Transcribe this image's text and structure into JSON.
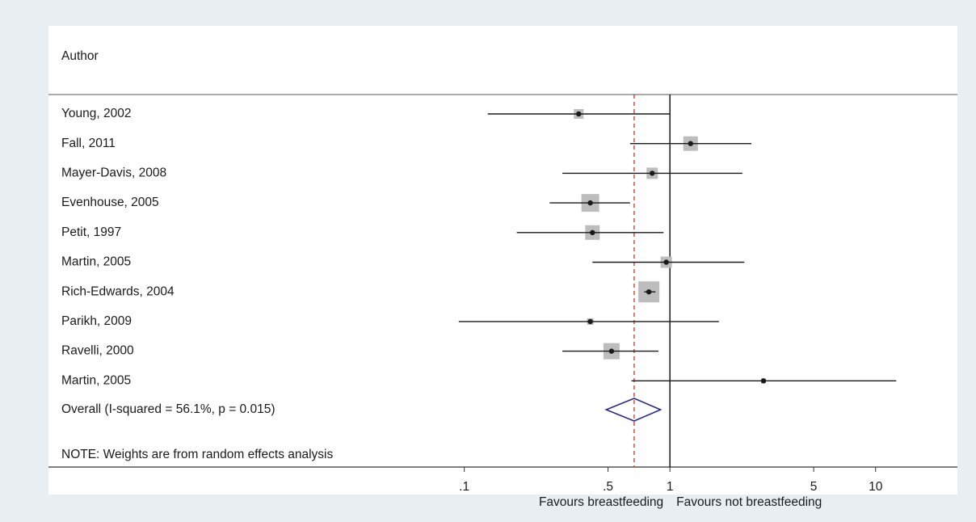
{
  "chart_data": {
    "type": "forest",
    "header": "Author",
    "log_scale": true,
    "xlim": [
      0.09,
      25
    ],
    "xticks": [
      {
        "value": 0.1,
        "label": ".1"
      },
      {
        "value": 0.5,
        "label": ".5"
      },
      1,
      5,
      10
    ],
    "null_value": 1,
    "xlabel_left": "Favours breastfeeding",
    "xlabel_right": "Favours not breastfeeding",
    "box_color": "#bdbdbd",
    "line_color": "#1a1a1a",
    "diamond_color": "#2b2b8c",
    "overall_line_color": "#c0392b",
    "studies": [
      {
        "label": "Young, 2002",
        "estimate": 0.36,
        "ci": [
          0.13,
          1.0
        ],
        "weight": 5.1
      },
      {
        "label": "Fall, 2011",
        "estimate": 1.26,
        "ci": [
          0.64,
          2.49
        ],
        "weight": 11.4
      },
      {
        "label": "Mayer-Davis, 2008",
        "estimate": 0.82,
        "ci": [
          0.3,
          2.25
        ],
        "weight": 6.9
      },
      {
        "label": "Evenhouse, 2005",
        "estimate": 0.41,
        "ci": [
          0.26,
          0.64
        ],
        "weight": 17.0
      },
      {
        "label": "Petit, 1997",
        "estimate": 0.42,
        "ci": [
          0.18,
          0.93
        ],
        "weight": 11.4
      },
      {
        "label": "Martin, 2005",
        "estimate": 0.96,
        "ci": [
          0.42,
          2.3
        ],
        "weight": 6.9
      },
      {
        "label": "Rich-Edwards, 2004",
        "estimate": 0.79,
        "ci": [
          0.75,
          0.85
        ],
        "weight": 23.8
      },
      {
        "label": "Parikh, 2009",
        "estimate": 0.41,
        "ci": [
          0.094,
          1.73
        ],
        "weight": 2.3
      },
      {
        "label": "Ravelli, 2000",
        "estimate": 0.52,
        "ci": [
          0.3,
          0.88
        ],
        "weight": 14.1
      },
      {
        "label": "Martin, 2005",
        "estimate": 2.85,
        "ci": [
          0.65,
          12.6
        ],
        "weight": 1.3
      }
    ],
    "overall": {
      "label": "Overall  (I-squared = 56.1%, p = 0.015)",
      "estimate": 0.67,
      "ci": [
        0.49,
        0.9
      ]
    },
    "note": "NOTE: Weights are from random effects analysis"
  }
}
